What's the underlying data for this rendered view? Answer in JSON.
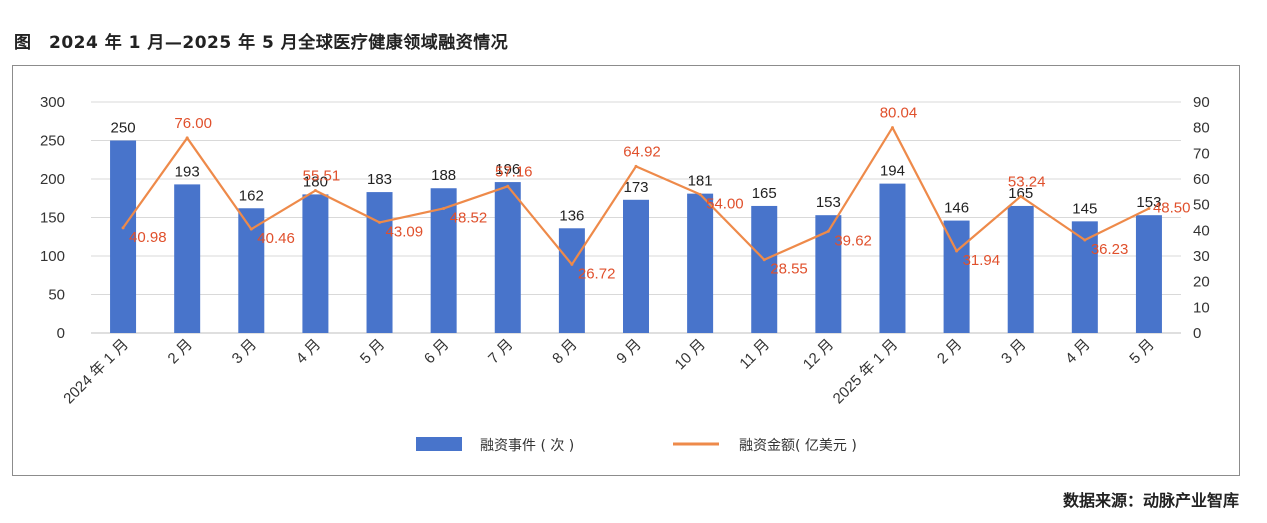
{
  "title": "图　2024 年 1 月—2025 年 5 月全球医疗健康领域融资情况",
  "source": "数据来源：动脉产业智库",
  "colors": {
    "bar": "#4874CB",
    "line": "#EE8A4A",
    "line_label": "#E0502C",
    "grid": "#D9D9D9",
    "axis": "#BFBFBF"
  },
  "chart_data": {
    "type": "bar",
    "categories": [
      "2024 年 1 月",
      "2 月",
      "3 月",
      "4 月",
      "5 月",
      "6 月",
      "7 月",
      "8 月",
      "9 月",
      "10 月",
      "11 月",
      "12 月",
      "2025 年 1 月",
      "2 月",
      "3 月",
      "4 月",
      "5 月"
    ],
    "series": [
      {
        "name": "融资事件 ( 次 )",
        "type": "bar",
        "axis": "left",
        "values": [
          250,
          193,
          162,
          180,
          183,
          188,
          196,
          136,
          173,
          181,
          165,
          153,
          194,
          146,
          165,
          145,
          153
        ],
        "labels": [
          "250",
          "193",
          "162",
          "180",
          "183",
          "188",
          "196",
          "136",
          "173",
          "181",
          "165",
          "153",
          "194",
          "146",
          "165",
          "145",
          "153"
        ]
      },
      {
        "name": "融资金额( 亿美元 )",
        "type": "line",
        "axis": "right",
        "values": [
          40.98,
          76.0,
          40.46,
          55.51,
          43.09,
          48.52,
          57.16,
          26.72,
          64.92,
          54.0,
          28.55,
          39.62,
          80.04,
          31.94,
          53.24,
          36.23,
          48.5
        ],
        "labels": [
          "40.98",
          "76.00",
          "40.46",
          "55.51",
          "43.09",
          "48.52",
          "57.16",
          "26.72",
          "64.92",
          "54.00",
          "28.55",
          "39.62",
          "80.04",
          "31.94",
          "53.24",
          "36.23",
          "48.50"
        ]
      }
    ],
    "y_left": {
      "min": 0,
      "max": 300,
      "step": 50,
      "ticks": [
        "0",
        "50",
        "100",
        "150",
        "200",
        "250",
        "300"
      ]
    },
    "y_right": {
      "min": 0,
      "max": 90,
      "step": 10,
      "ticks": [
        "0",
        "10",
        "20",
        "30",
        "40",
        "50",
        "60",
        "70",
        "80",
        "90"
      ]
    },
    "grid": true,
    "legend": "bottom-center"
  }
}
